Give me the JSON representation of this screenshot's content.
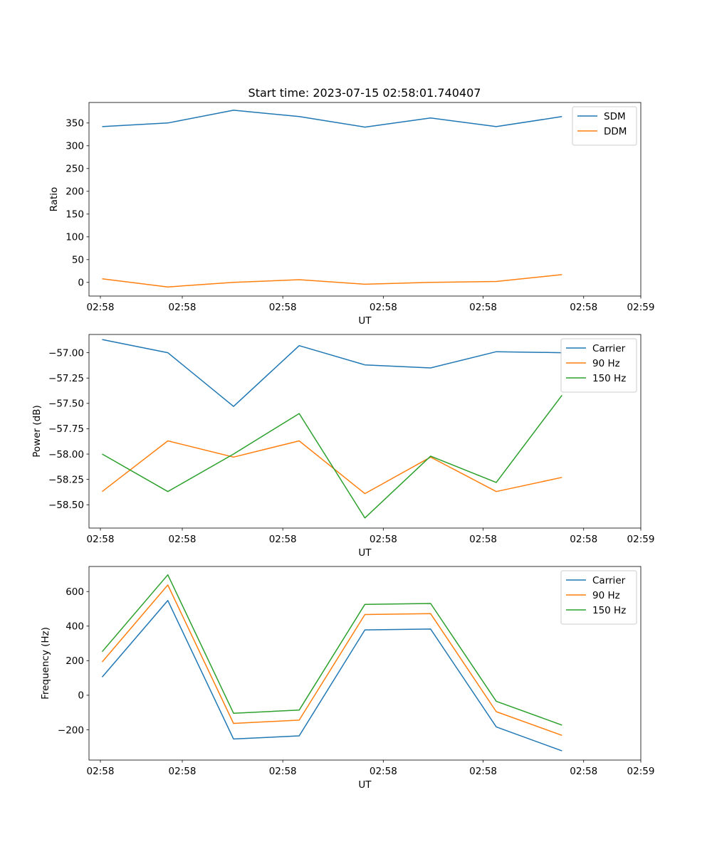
{
  "figure": {
    "title": "Start time: 2023-07-15 02:58:01.740407"
  },
  "colors": {
    "blue": "#1f77b4",
    "orange": "#ff7f0e",
    "green": "#2ca02c"
  },
  "chart_data": [
    {
      "type": "line",
      "title": "Start time: 2023-07-15 02:58:01.740407",
      "xlabel": "UT",
      "ylabel": "Ratio",
      "x": [
        1,
        2,
        3,
        4,
        5,
        6,
        7,
        8
      ],
      "xlim": [
        0.8,
        9.2
      ],
      "x_ticks": [
        1,
        2,
        3,
        4,
        5,
        6,
        7
      ],
      "x_tick_positions": [
        0.8,
        2.22,
        3.75,
        5.28,
        6.8,
        8.33,
        9.2
      ],
      "x_tick_labels": [
        "02:58",
        "02:58",
        "02:58",
        "02:58",
        "02:58",
        "02:58",
        "02:59"
      ],
      "ylim": [
        -30,
        395
      ],
      "y_ticks": [
        0,
        50,
        100,
        150,
        200,
        250,
        300,
        350
      ],
      "y_tick_labels": [
        "0",
        "50",
        "100",
        "150",
        "200",
        "250",
        "300",
        "350"
      ],
      "legend_position": "top-right",
      "series": [
        {
          "name": "SDM",
          "color": "blue",
          "values": [
            342,
            350,
            378,
            364,
            341,
            361,
            342,
            364
          ]
        },
        {
          "name": "DDM",
          "color": "orange",
          "values": [
            8,
            -10,
            0,
            6,
            -4,
            0,
            2,
            17
          ]
        }
      ]
    },
    {
      "type": "line",
      "title": "",
      "xlabel": "UT",
      "ylabel": "Power (dB)",
      "x": [
        1,
        2,
        3,
        4,
        5,
        6,
        7,
        8
      ],
      "xlim": [
        0.8,
        9.2
      ],
      "x_tick_positions": [
        0.8,
        2.22,
        3.75,
        5.28,
        6.8,
        8.33,
        9.2
      ],
      "x_tick_labels": [
        "02:58",
        "02:58",
        "02:58",
        "02:58",
        "02:58",
        "02:58",
        "02:59"
      ],
      "ylim": [
        -58.73,
        -56.82
      ],
      "y_ticks": [
        -58.5,
        -58.25,
        -58.0,
        -57.75,
        -57.5,
        -57.25,
        -57.0
      ],
      "y_tick_labels": [
        "−58.50",
        "−58.25",
        "−58.00",
        "−57.75",
        "−57.50",
        "−57.25",
        "−57.00"
      ],
      "legend_position": "top-right",
      "series": [
        {
          "name": "Carrier",
          "color": "blue",
          "values": [
            -56.87,
            -57.0,
            -57.53,
            -56.93,
            -57.12,
            -57.15,
            -56.99,
            -57.0
          ]
        },
        {
          "name": "90 Hz",
          "color": "orange",
          "values": [
            -58.37,
            -57.87,
            -58.03,
            -57.87,
            -58.39,
            -58.03,
            -58.37,
            -58.23
          ]
        },
        {
          "name": "150 Hz",
          "color": "green",
          "values": [
            -58.0,
            -58.37,
            -58.0,
            -57.6,
            -58.63,
            -58.02,
            -58.28,
            -57.42
          ]
        }
      ]
    },
    {
      "type": "line",
      "title": "",
      "xlabel": "UT",
      "ylabel": "Frequency (Hz)",
      "x": [
        1,
        2,
        3,
        4,
        5,
        6,
        7,
        8
      ],
      "xlim": [
        0.8,
        9.2
      ],
      "x_tick_positions": [
        0.8,
        2.22,
        3.75,
        5.28,
        6.8,
        8.33,
        9.2
      ],
      "x_tick_labels": [
        "02:58",
        "02:58",
        "02:58",
        "02:58",
        "02:58",
        "02:58",
        "02:59"
      ],
      "ylim": [
        -375,
        745
      ],
      "y_ticks": [
        -200,
        0,
        200,
        400,
        600
      ],
      "y_tick_labels": [
        "−200",
        "0",
        "200",
        "400",
        "600"
      ],
      "legend_position": "top-right",
      "series": [
        {
          "name": "Carrier",
          "color": "blue",
          "values": [
            105,
            548,
            -253,
            -235,
            378,
            383,
            -183,
            -322
          ]
        },
        {
          "name": "90 Hz",
          "color": "orange",
          "values": [
            193,
            638,
            -163,
            -144,
            467,
            472,
            -95,
            -232
          ]
        },
        {
          "name": "150 Hz",
          "color": "green",
          "values": [
            252,
            697,
            -104,
            -86,
            526,
            531,
            -35,
            -173
          ]
        }
      ]
    }
  ]
}
